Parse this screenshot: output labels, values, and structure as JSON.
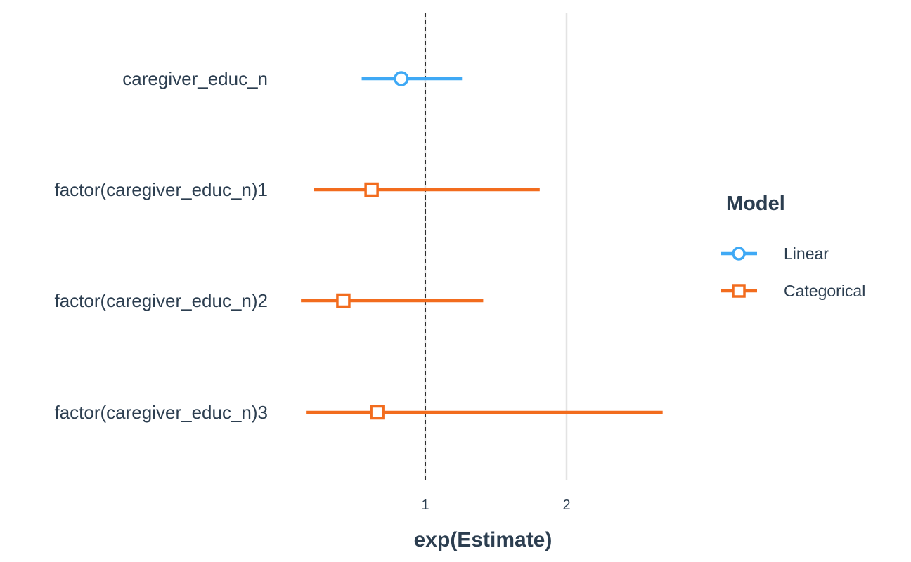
{
  "chart_data": {
    "type": "scatter",
    "subtype": "coefficient-plot",
    "xlabel": "exp(Estimate)",
    "ylabel": "",
    "xlim": [
      0.3,
      3.1
    ],
    "x_ticks": [
      1,
      2
    ],
    "x_tick_labels": [
      "1",
      "2"
    ],
    "reference_line": {
      "x": 1,
      "style": "dashed",
      "color": "#000000"
    },
    "grid": {
      "vertical_major": true,
      "horizontal": false
    },
    "legend": {
      "title": "Model",
      "position": "right"
    },
    "terms": [
      "caregiver_educ_n",
      "factor(caregiver_educ_n)1",
      "factor(caregiver_educ_n)2",
      "factor(caregiver_educ_n)3"
    ],
    "series": [
      {
        "name": "Linear",
        "color": "#3fa9f5",
        "marker": "circle",
        "points": [
          {
            "term": "caregiver_educ_n",
            "estimate": 0.83,
            "low": 0.55,
            "high": 1.26
          }
        ]
      },
      {
        "name": "Categorical",
        "color": "#f26c1e",
        "marker": "square",
        "points": [
          {
            "term": "factor(caregiver_educ_n)1",
            "estimate": 0.62,
            "low": 0.21,
            "high": 1.81
          },
          {
            "term": "factor(caregiver_educ_n)2",
            "estimate": 0.42,
            "low": 0.12,
            "high": 1.41
          },
          {
            "term": "factor(caregiver_educ_n)3",
            "estimate": 0.66,
            "low": 0.16,
            "high": 2.68
          }
        ]
      }
    ]
  }
}
